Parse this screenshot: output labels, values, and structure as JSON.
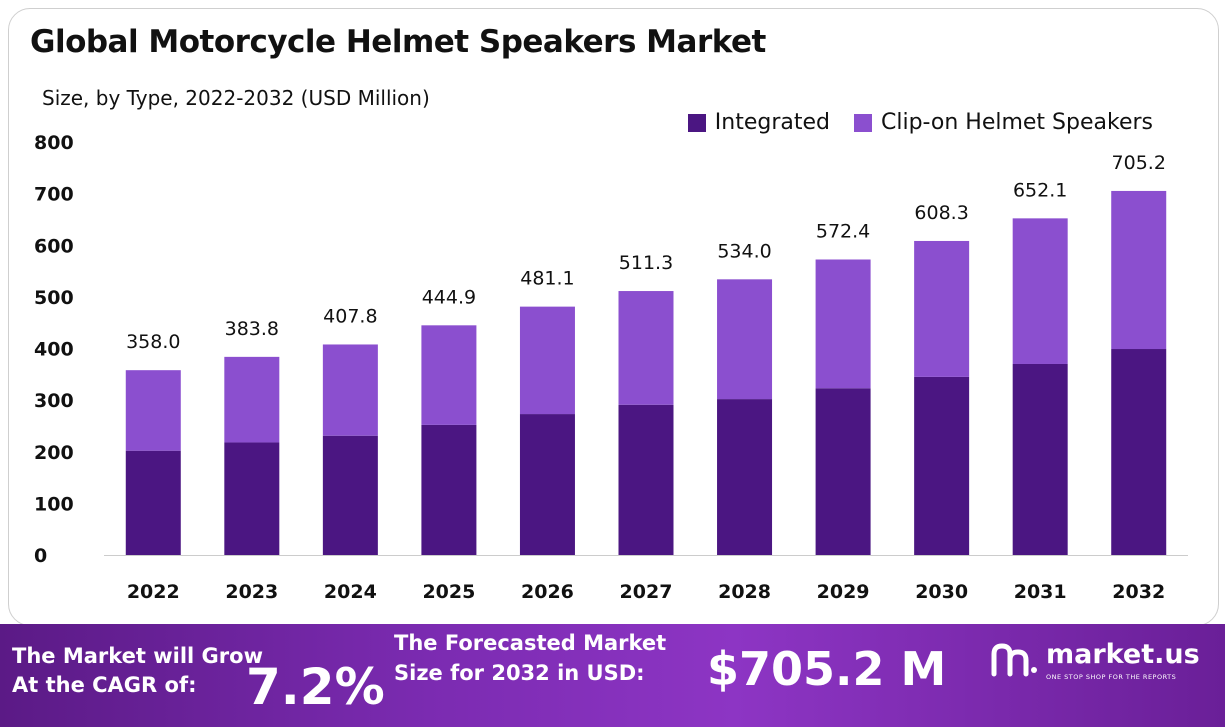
{
  "chart_data": {
    "type": "stacked-bar",
    "title": "Global Motorcycle Helmet Speakers Market",
    "subtitle": "Size, by Type, 2022-2032 (USD Million)",
    "categories": [
      "2022",
      "2023",
      "2024",
      "2025",
      "2026",
      "2027",
      "2028",
      "2029",
      "2030",
      "2031",
      "2032"
    ],
    "series": [
      {
        "name": "Integrated",
        "values": [
          202,
          218,
          231,
          252,
          273,
          291,
          302,
          323,
          345,
          370,
          399
        ]
      },
      {
        "name": "Clip-on Helmet Speakers",
        "values": [
          156,
          165.8,
          176.8,
          192.9,
          208.1,
          220.3,
          232,
          249.4,
          263.3,
          282.1,
          306.2
        ]
      }
    ],
    "totals": [
      "358.0",
      "383.8",
      "407.8",
      "444.9",
      "481.1",
      "511.3",
      "534.0",
      "572.4",
      "608.3",
      "652.1",
      "705.2"
    ],
    "yticks": [
      0,
      100,
      200,
      300,
      400,
      500,
      600,
      700,
      800
    ],
    "ylim": [
      0,
      800
    ],
    "colors": {
      "Integrated": "#4b1682",
      "Clip-on Helmet Speakers": "#8b4fcf"
    },
    "legend_position": "top-right"
  },
  "banner": {
    "grow_label": "The Market will Grow At the CAGR of:",
    "cagr": "7.2%",
    "forecast_label": "The Forecasted Market Size for 2032 in USD:",
    "forecast_value": "$705.2 M",
    "brand_name": "market.us",
    "brand_tagline": "ONE STOP SHOP FOR THE REPORTS"
  }
}
